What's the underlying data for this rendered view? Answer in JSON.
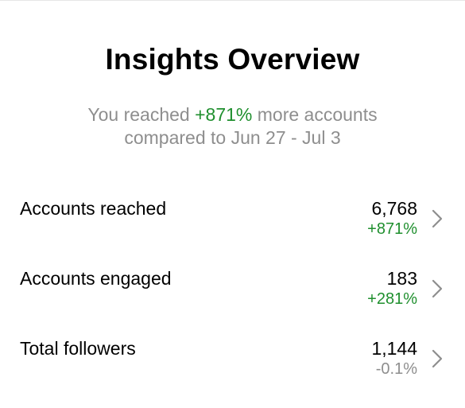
{
  "header": {
    "title": "Insights Overview"
  },
  "summary": {
    "prefix": "You reached ",
    "highlight": "+871%",
    "suffix": " more accounts",
    "line2": "compared to Jun 27 - Jul 3"
  },
  "metrics": [
    {
      "label": "Accounts reached",
      "value": "6,768",
      "change": "+871%",
      "trend": "positive"
    },
    {
      "label": "Accounts engaged",
      "value": "183",
      "change": "+281%",
      "trend": "positive"
    },
    {
      "label": "Total followers",
      "value": "1,144",
      "change": "-0.1%",
      "trend": "neutral"
    }
  ],
  "icons": {
    "row_chevron": "chevron-right-icon"
  },
  "colors": {
    "positive": "#1f8f2e",
    "muted": "#8e8e8e"
  }
}
